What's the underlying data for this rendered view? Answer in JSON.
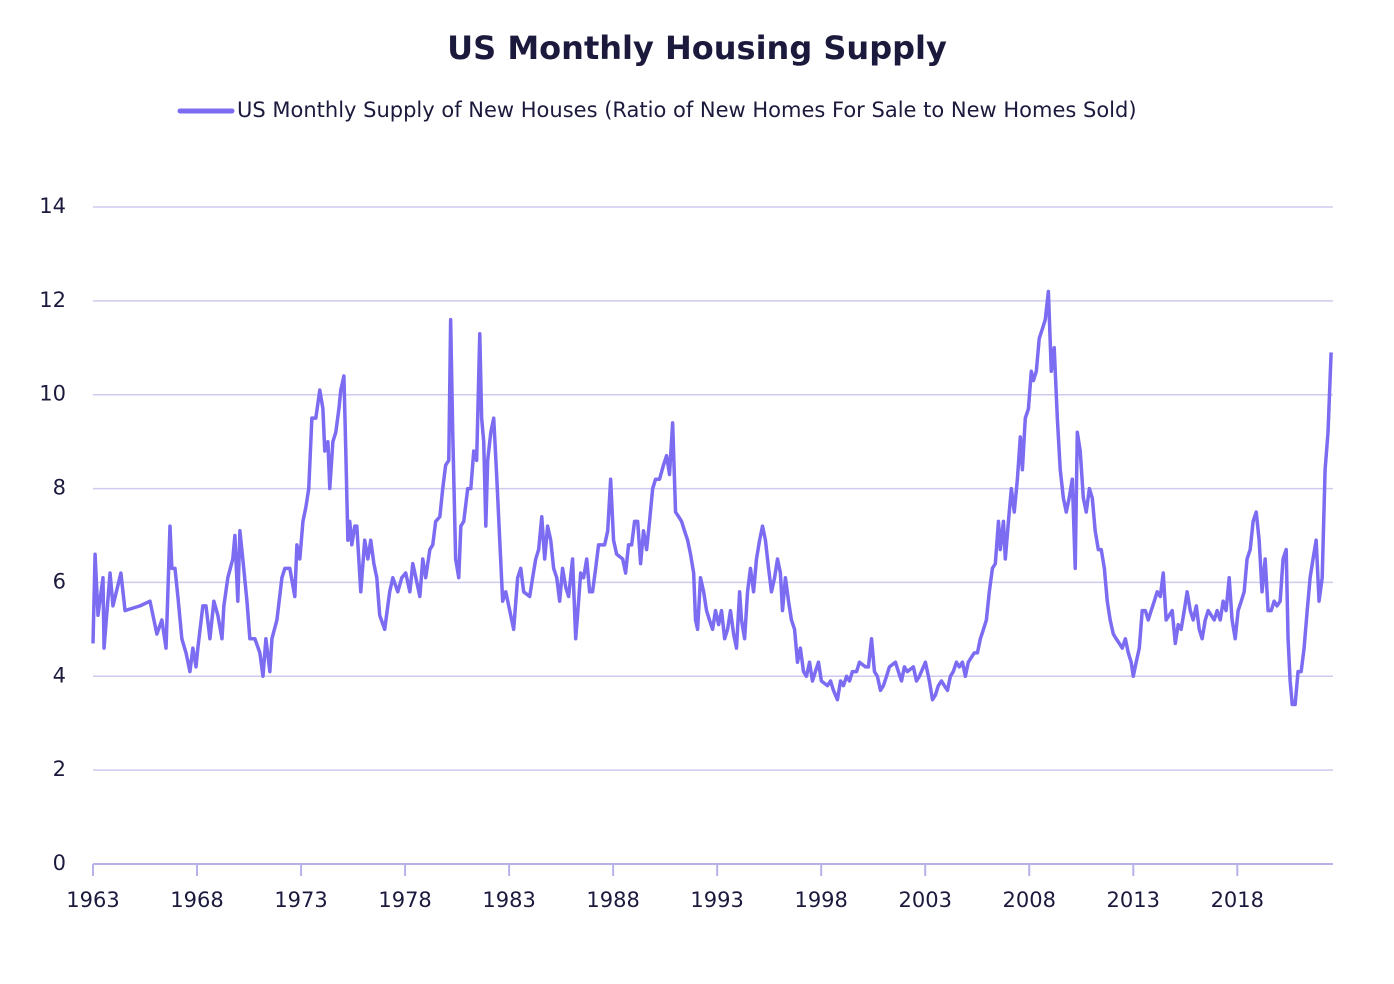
{
  "chart_data": {
    "type": "line",
    "title": "US Monthly Housing Supply",
    "legend": "top",
    "grid": true,
    "xlim": [
      1963,
      2022.6
    ],
    "xticks": [
      1963,
      1968,
      1973,
      1978,
      1983,
      1988,
      1993,
      1998,
      2003,
      2008,
      2013,
      2018
    ],
    "ylim": [
      0,
      14
    ],
    "yticks": [
      0,
      2,
      4,
      6,
      8,
      10,
      12,
      14
    ],
    "x": [
      1963.0,
      1963.1,
      1963.24,
      1963.48,
      1963.53,
      1963.82,
      1963.96,
      1964.34,
      1964.54,
      1965.26,
      1965.74,
      1966.07,
      1966.31,
      1966.51,
      1966.6,
      1966.7,
      1966.79,
      1966.94,
      1967.08,
      1967.27,
      1967.47,
      1967.66,
      1967.8,
      1967.95,
      1968.04,
      1968.28,
      1968.43,
      1968.62,
      1968.81,
      1969.0,
      1969.2,
      1969.29,
      1969.48,
      1969.72,
      1969.82,
      1969.96,
      1970.06,
      1970.2,
      1970.4,
      1970.54,
      1970.78,
      1971.02,
      1971.17,
      1971.31,
      1971.5,
      1971.6,
      1971.84,
      1972.08,
      1972.22,
      1972.46,
      1972.7,
      1972.8,
      1972.94,
      1973.09,
      1973.23,
      1973.37,
      1973.52,
      1973.71,
      1973.9,
      1974.05,
      1974.14,
      1974.29,
      1974.38,
      1974.53,
      1974.67,
      1974.82,
      1974.91,
      1975.06,
      1975.15,
      1975.25,
      1975.34,
      1975.44,
      1975.58,
      1975.68,
      1975.87,
      1976.06,
      1976.21,
      1976.35,
      1976.5,
      1976.64,
      1976.78,
      1977.02,
      1977.26,
      1977.41,
      1977.65,
      1977.84,
      1978.03,
      1978.23,
      1978.37,
      1978.47,
      1978.71,
      1978.85,
      1978.99,
      1979.19,
      1979.33,
      1979.47,
      1979.67,
      1979.81,
      1979.95,
      1980.1,
      1980.19,
      1980.29,
      1980.43,
      1980.58,
      1980.68,
      1980.82,
      1981.01,
      1981.16,
      1981.3,
      1981.44,
      1981.59,
      1981.68,
      1981.78,
      1981.88,
      1981.97,
      1982.12,
      1982.26,
      1982.4,
      1982.55,
      1982.69,
      1982.84,
      1983.03,
      1983.22,
      1983.41,
      1983.56,
      1983.7,
      1983.99,
      1984.13,
      1984.28,
      1984.42,
      1984.57,
      1984.71,
      1984.85,
      1985.0,
      1985.14,
      1985.29,
      1985.43,
      1985.57,
      1985.72,
      1985.86,
      1986.05,
      1986.2,
      1986.29,
      1986.44,
      1986.58,
      1986.73,
      1986.87,
      1987.01,
      1987.16,
      1987.3,
      1987.59,
      1987.74,
      1987.88,
      1988.02,
      1988.17,
      1988.46,
      1988.6,
      1988.74,
      1988.89,
      1989.03,
      1989.18,
      1989.32,
      1989.46,
      1989.61,
      1989.75,
      1989.9,
      1990.04,
      1990.23,
      1990.42,
      1990.57,
      1990.71,
      1990.86,
      1991.0,
      1991.15,
      1991.29,
      1991.43,
      1991.58,
      1991.72,
      1991.87,
      1991.96,
      1992.06,
      1992.2,
      1992.35,
      1992.49,
      1992.63,
      1992.78,
      1992.92,
      1993.07,
      1993.21,
      1993.36,
      1993.5,
      1993.64,
      1993.79,
      1993.93,
      1994.08,
      1994.17,
      1994.32,
      1994.46,
      1994.6,
      1994.75,
      1994.89,
      1995.04,
      1995.18,
      1995.32,
      1995.47,
      1995.61,
      1995.76,
      1995.9,
      1996.04,
      1996.14,
      1996.28,
      1996.43,
      1996.57,
      1996.72,
      1996.86,
      1997.0,
      1997.15,
      1997.29,
      1997.44,
      1997.58,
      1997.72,
      1997.87,
      1998.01,
      1998.3,
      1998.45,
      1998.59,
      1998.78,
      1998.93,
      1999.07,
      1999.22,
      1999.36,
      1999.5,
      1999.7,
      1999.84,
      2000.13,
      2000.27,
      2000.42,
      2000.56,
      2000.7,
      2000.85,
      2000.99,
      2001.14,
      2001.28,
      2001.57,
      2001.71,
      2001.86,
      2002.0,
      2002.14,
      2002.43,
      2002.58,
      2002.72,
      2003.01,
      2003.2,
      2003.35,
      2003.49,
      2003.63,
      2003.78,
      2003.92,
      2004.07,
      2004.21,
      2004.35,
      2004.5,
      2004.64,
      2004.79,
      2004.93,
      2005.07,
      2005.36,
      2005.51,
      2005.65,
      2005.8,
      2005.94,
      2006.08,
      2006.23,
      2006.37,
      2006.52,
      2006.61,
      2006.76,
      2006.85,
      2007.0,
      2007.14,
      2007.28,
      2007.43,
      2007.57,
      2007.67,
      2007.81,
      2007.96,
      2008.1,
      2008.2,
      2008.34,
      2008.48,
      2008.63,
      2008.77,
      2008.92,
      2009.06,
      2009.2,
      2009.35,
      2009.49,
      2009.64,
      2009.78,
      2009.92,
      2010.07,
      2010.21,
      2010.31,
      2010.45,
      2010.6,
      2010.74,
      2010.89,
      2011.03,
      2011.17,
      2011.32,
      2011.46,
      2011.61,
      2011.75,
      2011.89,
      2012.04,
      2012.18,
      2012.33,
      2012.47,
      2012.62,
      2012.76,
      2012.9,
      2013.0,
      2013.14,
      2013.29,
      2013.43,
      2013.58,
      2013.72,
      2013.86,
      2014.01,
      2014.15,
      2014.3,
      2014.44,
      2014.58,
      2014.73,
      2014.87,
      2015.02,
      2015.16,
      2015.3,
      2015.45,
      2015.59,
      2015.74,
      2015.88,
      2016.03,
      2016.17,
      2016.31,
      2016.46,
      2016.6,
      2016.89,
      2017.03,
      2017.18,
      2017.32,
      2017.46,
      2017.61,
      2017.75,
      2017.9,
      2018.04,
      2018.19,
      2018.33,
      2018.47,
      2018.62,
      2018.76,
      2018.91,
      2019.05,
      2019.19,
      2019.34,
      2019.48,
      2019.63,
      2019.77,
      2019.91,
      2020.06,
      2020.2,
      2020.35,
      2020.44,
      2020.54,
      2020.64,
      2020.78,
      2020.92,
      2021.07,
      2021.21,
      2021.36,
      2021.5,
      2021.64,
      2021.79,
      2021.93,
      2022.08,
      2022.22,
      2022.36,
      2022.51
    ],
    "series": [
      {
        "name": "US Monthly Supply of New Houses (Ratio of New Homes For Sale to New Homes Sold)",
        "color": "#7b6cf2",
        "values": [
          4.7,
          6.6,
          5.3,
          6.1,
          4.6,
          6.2,
          5.5,
          6.2,
          5.4,
          5.5,
          5.6,
          4.9,
          5.2,
          4.6,
          5.8,
          7.2,
          6.3,
          6.3,
          5.7,
          4.8,
          4.5,
          4.1,
          4.6,
          4.2,
          4.6,
          5.5,
          5.5,
          4.8,
          5.6,
          5.3,
          4.8,
          5.5,
          6.1,
          6.5,
          7.0,
          5.6,
          7.1,
          6.5,
          5.6,
          4.8,
          4.8,
          4.5,
          4.0,
          4.8,
          4.1,
          4.8,
          5.2,
          6.1,
          6.3,
          6.3,
          5.7,
          6.8,
          6.5,
          7.3,
          7.6,
          8.0,
          9.5,
          9.5,
          10.1,
          9.7,
          8.8,
          9.0,
          8.0,
          9.0,
          9.2,
          9.7,
          10.1,
          10.4,
          8.8,
          6.9,
          7.3,
          6.8,
          7.2,
          7.2,
          5.8,
          6.9,
          6.5,
          6.9,
          6.4,
          6.1,
          5.3,
          5.0,
          5.8,
          6.1,
          5.8,
          6.1,
          6.2,
          5.8,
          6.4,
          6.2,
          5.7,
          6.5,
          6.1,
          6.7,
          6.8,
          7.3,
          7.4,
          8.0,
          8.5,
          8.6,
          11.6,
          9.2,
          6.5,
          6.1,
          7.2,
          7.3,
          8.0,
          8.0,
          8.8,
          8.6,
          11.3,
          9.5,
          9.0,
          7.2,
          8.6,
          9.2,
          9.5,
          8.3,
          6.9,
          5.6,
          5.8,
          5.4,
          5.0,
          6.1,
          6.3,
          5.8,
          5.7,
          6.1,
          6.5,
          6.7,
          7.4,
          6.5,
          7.2,
          6.9,
          6.3,
          6.1,
          5.6,
          6.3,
          5.9,
          5.7,
          6.5,
          4.8,
          5.3,
          6.2,
          6.1,
          6.5,
          5.8,
          5.8,
          6.3,
          6.8,
          6.8,
          7.1,
          8.2,
          6.9,
          6.6,
          6.5,
          6.2,
          6.8,
          6.8,
          7.3,
          7.3,
          6.4,
          7.1,
          6.7,
          7.3,
          8.0,
          8.2,
          8.2,
          8.5,
          8.7,
          8.3,
          9.4,
          7.5,
          7.4,
          7.3,
          7.1,
          6.9,
          6.6,
          6.2,
          5.2,
          5.0,
          6.1,
          5.8,
          5.4,
          5.2,
          5.0,
          5.4,
          5.1,
          5.4,
          4.8,
          5.0,
          5.4,
          4.9,
          4.6,
          5.8,
          5.2,
          4.8,
          5.8,
          6.3,
          5.8,
          6.5,
          6.9,
          7.2,
          6.9,
          6.3,
          5.8,
          6.1,
          6.5,
          6.2,
          5.4,
          6.1,
          5.6,
          5.2,
          5.0,
          4.3,
          4.6,
          4.1,
          4.0,
          4.3,
          3.9,
          4.1,
          4.3,
          3.9,
          3.8,
          3.9,
          3.7,
          3.5,
          3.9,
          3.8,
          4.0,
          3.9,
          4.1,
          4.1,
          4.3,
          4.2,
          4.2,
          4.8,
          4.1,
          4.0,
          3.7,
          3.8,
          4.0,
          4.2,
          4.3,
          4.1,
          3.9,
          4.2,
          4.1,
          4.2,
          3.9,
          4.0,
          4.3,
          3.9,
          3.5,
          3.6,
          3.8,
          3.9,
          3.8,
          3.7,
          4.0,
          4.1,
          4.3,
          4.2,
          4.3,
          4.0,
          4.3,
          4.5,
          4.5,
          4.8,
          5.0,
          5.2,
          5.8,
          6.3,
          6.4,
          7.3,
          6.7,
          7.3,
          6.5,
          7.3,
          8.0,
          7.5,
          8.2,
          9.1,
          8.4,
          9.5,
          9.7,
          10.5,
          10.3,
          10.5,
          11.2,
          11.4,
          11.6,
          12.2,
          10.5,
          11.0,
          9.5,
          8.4,
          7.8,
          7.5,
          7.8,
          8.2,
          6.3,
          9.2,
          8.8,
          7.8,
          7.5,
          8.0,
          7.8,
          7.1,
          6.7,
          6.7,
          6.3,
          5.6,
          5.2,
          4.9,
          4.8,
          4.7,
          4.6,
          4.8,
          4.5,
          4.3,
          4.0,
          4.3,
          4.6,
          5.4,
          5.4,
          5.2,
          5.4,
          5.6,
          5.8,
          5.7,
          6.2,
          5.2,
          5.3,
          5.4,
          4.7,
          5.1,
          5.0,
          5.4,
          5.8,
          5.4,
          5.2,
          5.5,
          5.0,
          4.8,
          5.2,
          5.4,
          5.2,
          5.4,
          5.2,
          5.6,
          5.4,
          6.1,
          5.2,
          4.8,
          5.4,
          5.6,
          5.8,
          6.5,
          6.7,
          7.3,
          7.5,
          6.9,
          5.8,
          6.5,
          5.4,
          5.4,
          5.6,
          5.5,
          5.6,
          6.5,
          6.7,
          4.8,
          3.9,
          3.4,
          3.4,
          4.1,
          4.1,
          4.6,
          5.4,
          6.1,
          6.5,
          6.9,
          5.6,
          6.1,
          8.4,
          9.2,
          10.9
        ]
      }
    ]
  }
}
